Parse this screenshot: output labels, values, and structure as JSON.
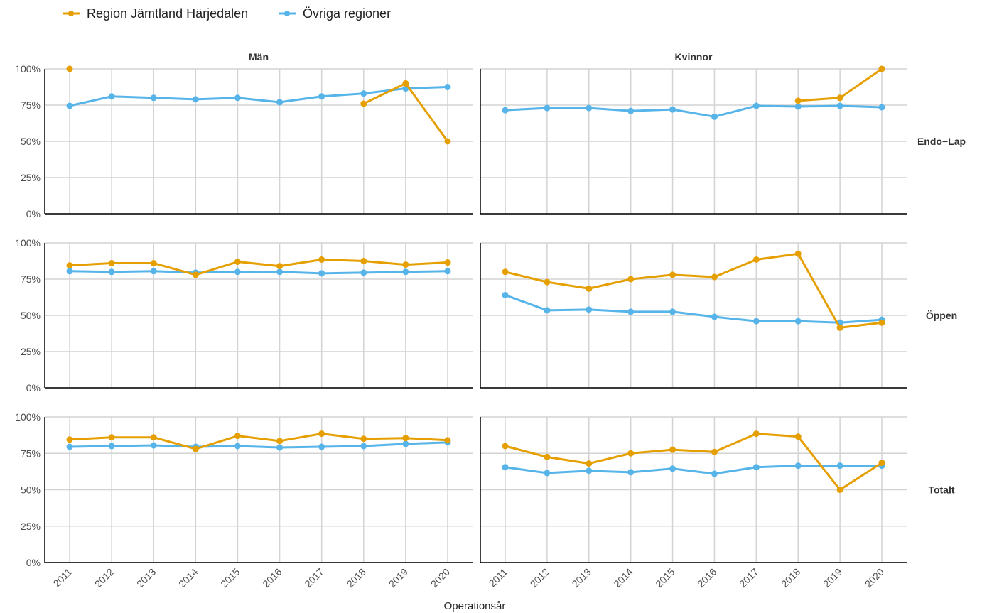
{
  "chart_data": {
    "type": "line",
    "xlabel": "Operationsår",
    "x": [
      2011,
      2012,
      2013,
      2014,
      2015,
      2016,
      2017,
      2018,
      2019,
      2020
    ],
    "ylim": [
      0,
      1
    ],
    "yticks": [
      "0%",
      "25%",
      "50%",
      "75%",
      "100%"
    ],
    "grid": true,
    "legend_position": "top-left",
    "columns": [
      "Män",
      "Kvinnor"
    ],
    "rows": [
      "Endo−Lap",
      "Öppen",
      "Totalt"
    ],
    "series_styles": [
      {
        "name": "Region Jämtland Härjedalen",
        "color": "#E69F00"
      },
      {
        "name": "Övriga regioner",
        "color": "#56B4E9"
      }
    ],
    "panels": [
      {
        "row": "Endo−Lap",
        "col": "Män",
        "series": [
          {
            "name": "Region Jämtland Härjedalen",
            "values": [
              1.0,
              null,
              null,
              null,
              null,
              null,
              null,
              0.76,
              0.9,
              0.5
            ]
          },
          {
            "name": "Övriga regioner",
            "values": [
              0.745,
              0.81,
              0.8,
              0.79,
              0.8,
              0.77,
              0.81,
              0.83,
              0.865,
              0.875
            ]
          }
        ]
      },
      {
        "row": "Endo−Lap",
        "col": "Kvinnor",
        "series": [
          {
            "name": "Region Jämtland Härjedalen",
            "values": [
              null,
              null,
              null,
              null,
              null,
              null,
              null,
              0.78,
              0.8,
              1.0
            ]
          },
          {
            "name": "Övriga regioner",
            "values": [
              0.715,
              0.73,
              0.73,
              0.71,
              0.72,
              0.67,
              0.745,
              0.74,
              0.745,
              0.735
            ]
          }
        ]
      },
      {
        "row": "Öppen",
        "col": "Män",
        "series": [
          {
            "name": "Region Jämtland Härjedalen",
            "values": [
              0.845,
              0.86,
              0.86,
              0.78,
              0.87,
              0.84,
              0.885,
              0.875,
              0.85,
              0.865
            ]
          },
          {
            "name": "Övriga regioner",
            "values": [
              0.805,
              0.8,
              0.805,
              0.795,
              0.8,
              0.8,
              0.79,
              0.795,
              0.8,
              0.805
            ]
          }
        ]
      },
      {
        "row": "Öppen",
        "col": "Kvinnor",
        "series": [
          {
            "name": "Region Jämtland Härjedalen",
            "values": [
              0.8,
              0.73,
              0.685,
              0.75,
              0.78,
              0.765,
              0.885,
              0.925,
              0.415,
              0.45
            ]
          },
          {
            "name": "Övriga regioner",
            "values": [
              0.64,
              0.535,
              0.54,
              0.525,
              0.525,
              0.49,
              0.46,
              0.46,
              0.45,
              0.47
            ]
          }
        ]
      },
      {
        "row": "Totalt",
        "col": "Män",
        "series": [
          {
            "name": "Region Jämtland Härjedalen",
            "values": [
              0.845,
              0.86,
              0.86,
              0.78,
              0.87,
              0.835,
              0.885,
              0.85,
              0.855,
              0.84
            ]
          },
          {
            "name": "Övriga regioner",
            "values": [
              0.795,
              0.8,
              0.805,
              0.795,
              0.8,
              0.79,
              0.795,
              0.8,
              0.815,
              0.825
            ]
          }
        ]
      },
      {
        "row": "Totalt",
        "col": "Kvinnor",
        "series": [
          {
            "name": "Region Jämtland Härjedalen",
            "values": [
              0.8,
              0.725,
              0.68,
              0.75,
              0.775,
              0.76,
              0.885,
              0.865,
              0.5,
              0.685
            ]
          },
          {
            "name": "Övriga regioner",
            "values": [
              0.655,
              0.615,
              0.63,
              0.62,
              0.645,
              0.61,
              0.655,
              0.665,
              0.665,
              0.665
            ]
          }
        ]
      }
    ]
  }
}
